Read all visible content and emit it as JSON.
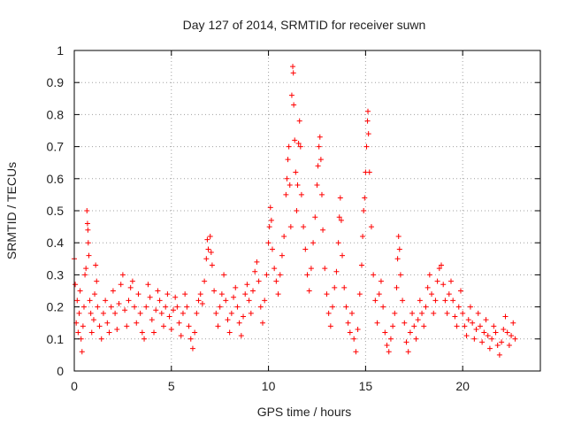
{
  "chart_data": {
    "type": "scatter",
    "title": "Day 127 of 2014, SRMTID for receiver suwn",
    "xlabel": "GPS time / hours",
    "ylabel": "SRMTID / TECUs",
    "xlim": [
      0,
      24
    ],
    "ylim": [
      0,
      1
    ],
    "x_ticks": [
      0,
      5,
      10,
      15,
      20
    ],
    "x_tick_labels": [
      "0",
      "5",
      "10",
      "15",
      "20"
    ],
    "y_ticks": [
      0,
      0.1,
      0.2,
      0.3,
      0.4,
      0.5,
      0.6,
      0.7,
      0.8,
      0.9,
      1
    ],
    "y_tick_labels": [
      "0",
      "0.1",
      "0.2",
      "0.3",
      "0.4",
      "0.5",
      "0.6",
      "0.7",
      "0.8",
      "0.9",
      "1"
    ],
    "grid": true,
    "marker": "+",
    "color": "#ff0000",
    "series": [
      {
        "name": "SRMTID",
        "points": [
          [
            0.0,
            0.35
          ],
          [
            0.05,
            0.27
          ],
          [
            0.1,
            0.15
          ],
          [
            0.15,
            0.22
          ],
          [
            0.2,
            0.12
          ],
          [
            0.25,
            0.18
          ],
          [
            0.3,
            0.25
          ],
          [
            0.35,
            0.1
          ],
          [
            0.4,
            0.06
          ],
          [
            0.45,
            0.14
          ],
          [
            0.5,
            0.2
          ],
          [
            0.55,
            0.3
          ],
          [
            0.6,
            0.32
          ],
          [
            0.65,
            0.5
          ],
          [
            0.68,
            0.46
          ],
          [
            0.7,
            0.44
          ],
          [
            0.72,
            0.4
          ],
          [
            0.75,
            0.36
          ],
          [
            0.8,
            0.22
          ],
          [
            0.85,
            0.18
          ],
          [
            0.9,
            0.12
          ],
          [
            1.0,
            0.16
          ],
          [
            1.05,
            0.24
          ],
          [
            1.1,
            0.33
          ],
          [
            1.15,
            0.28
          ],
          [
            1.2,
            0.2
          ],
          [
            1.3,
            0.14
          ],
          [
            1.4,
            0.1
          ],
          [
            1.5,
            0.18
          ],
          [
            1.6,
            0.22
          ],
          [
            1.7,
            0.15
          ],
          [
            1.8,
            0.12
          ],
          [
            1.9,
            0.2
          ],
          [
            2.0,
            0.25
          ],
          [
            2.1,
            0.18
          ],
          [
            2.2,
            0.13
          ],
          [
            2.3,
            0.21
          ],
          [
            2.4,
            0.27
          ],
          [
            2.5,
            0.3
          ],
          [
            2.6,
            0.19
          ],
          [
            2.7,
            0.14
          ],
          [
            2.8,
            0.22
          ],
          [
            2.9,
            0.26
          ],
          [
            3.0,
            0.28
          ],
          [
            3.1,
            0.2
          ],
          [
            3.2,
            0.15
          ],
          [
            3.3,
            0.24
          ],
          [
            3.4,
            0.18
          ],
          [
            3.5,
            0.12
          ],
          [
            3.6,
            0.1
          ],
          [
            3.7,
            0.2
          ],
          [
            3.8,
            0.27
          ],
          [
            3.9,
            0.23
          ],
          [
            4.0,
            0.16
          ],
          [
            4.1,
            0.12
          ],
          [
            4.2,
            0.19
          ],
          [
            4.3,
            0.25
          ],
          [
            4.4,
            0.22
          ],
          [
            4.5,
            0.18
          ],
          [
            4.6,
            0.14
          ],
          [
            4.7,
            0.2
          ],
          [
            4.8,
            0.24
          ],
          [
            4.9,
            0.17
          ],
          [
            5.0,
            0.13
          ],
          [
            5.1,
            0.19
          ],
          [
            5.2,
            0.23
          ],
          [
            5.3,
            0.2
          ],
          [
            5.4,
            0.15
          ],
          [
            5.5,
            0.11
          ],
          [
            5.6,
            0.18
          ],
          [
            5.7,
            0.24
          ],
          [
            5.8,
            0.2
          ],
          [
            5.9,
            0.14
          ],
          [
            6.0,
            0.1
          ],
          [
            6.1,
            0.07
          ],
          [
            6.2,
            0.12
          ],
          [
            6.3,
            0.18
          ],
          [
            6.4,
            0.22
          ],
          [
            6.5,
            0.24
          ],
          [
            6.6,
            0.21
          ],
          [
            6.7,
            0.28
          ],
          [
            6.8,
            0.35
          ],
          [
            6.85,
            0.41
          ],
          [
            6.9,
            0.38
          ],
          [
            7.0,
            0.42
          ],
          [
            7.05,
            0.37
          ],
          [
            7.1,
            0.33
          ],
          [
            7.2,
            0.25
          ],
          [
            7.3,
            0.18
          ],
          [
            7.4,
            0.14
          ],
          [
            7.5,
            0.2
          ],
          [
            7.6,
            0.24
          ],
          [
            7.7,
            0.3
          ],
          [
            7.8,
            0.22
          ],
          [
            7.9,
            0.16
          ],
          [
            8.0,
            0.12
          ],
          [
            8.1,
            0.18
          ],
          [
            8.2,
            0.23
          ],
          [
            8.3,
            0.26
          ],
          [
            8.4,
            0.2
          ],
          [
            8.5,
            0.15
          ],
          [
            8.6,
            0.11
          ],
          [
            8.7,
            0.17
          ],
          [
            8.8,
            0.24
          ],
          [
            8.9,
            0.27
          ],
          [
            9.0,
            0.22
          ],
          [
            9.1,
            0.18
          ],
          [
            9.2,
            0.25
          ],
          [
            9.3,
            0.31
          ],
          [
            9.4,
            0.34
          ],
          [
            9.5,
            0.28
          ],
          [
            9.6,
            0.2
          ],
          [
            9.7,
            0.15
          ],
          [
            9.8,
            0.22
          ],
          [
            9.9,
            0.3
          ],
          [
            10.0,
            0.4
          ],
          [
            10.05,
            0.45
          ],
          [
            10.1,
            0.51
          ],
          [
            10.15,
            0.47
          ],
          [
            10.2,
            0.38
          ],
          [
            10.3,
            0.32
          ],
          [
            10.4,
            0.28
          ],
          [
            10.5,
            0.24
          ],
          [
            10.6,
            0.3
          ],
          [
            10.7,
            0.36
          ],
          [
            10.8,
            0.42
          ],
          [
            10.9,
            0.55
          ],
          [
            10.95,
            0.6
          ],
          [
            11.0,
            0.66
          ],
          [
            11.05,
            0.7
          ],
          [
            11.1,
            0.58
          ],
          [
            11.15,
            0.45
          ],
          [
            11.2,
            0.86
          ],
          [
            11.25,
            0.95
          ],
          [
            11.28,
            0.93
          ],
          [
            11.3,
            0.83
          ],
          [
            11.35,
            0.72
          ],
          [
            11.4,
            0.62
          ],
          [
            11.45,
            0.5
          ],
          [
            11.5,
            0.58
          ],
          [
            11.55,
            0.71
          ],
          [
            11.6,
            0.78
          ],
          [
            11.65,
            0.7
          ],
          [
            11.7,
            0.55
          ],
          [
            11.8,
            0.45
          ],
          [
            11.9,
            0.38
          ],
          [
            12.0,
            0.3
          ],
          [
            12.1,
            0.25
          ],
          [
            12.2,
            0.32
          ],
          [
            12.3,
            0.4
          ],
          [
            12.4,
            0.48
          ],
          [
            12.5,
            0.58
          ],
          [
            12.55,
            0.64
          ],
          [
            12.6,
            0.7
          ],
          [
            12.65,
            0.73
          ],
          [
            12.7,
            0.66
          ],
          [
            12.75,
            0.55
          ],
          [
            12.8,
            0.44
          ],
          [
            12.9,
            0.32
          ],
          [
            13.0,
            0.24
          ],
          [
            13.1,
            0.18
          ],
          [
            13.2,
            0.14
          ],
          [
            13.3,
            0.2
          ],
          [
            13.4,
            0.26
          ],
          [
            13.5,
            0.31
          ],
          [
            13.6,
            0.4
          ],
          [
            13.65,
            0.48
          ],
          [
            13.7,
            0.54
          ],
          [
            13.75,
            0.47
          ],
          [
            13.8,
            0.36
          ],
          [
            13.9,
            0.26
          ],
          [
            14.0,
            0.2
          ],
          [
            14.1,
            0.15
          ],
          [
            14.2,
            0.12
          ],
          [
            14.3,
            0.18
          ],
          [
            14.4,
            0.1
          ],
          [
            14.5,
            0.06
          ],
          [
            14.6,
            0.13
          ],
          [
            14.7,
            0.24
          ],
          [
            14.8,
            0.33
          ],
          [
            14.85,
            0.42
          ],
          [
            14.9,
            0.5
          ],
          [
            14.95,
            0.54
          ],
          [
            15.0,
            0.62
          ],
          [
            15.05,
            0.7
          ],
          [
            15.1,
            0.78
          ],
          [
            15.12,
            0.81
          ],
          [
            15.15,
            0.74
          ],
          [
            15.2,
            0.62
          ],
          [
            15.3,
            0.45
          ],
          [
            15.4,
            0.3
          ],
          [
            15.5,
            0.22
          ],
          [
            15.6,
            0.15
          ],
          [
            15.7,
            0.24
          ],
          [
            15.8,
            0.28
          ],
          [
            15.9,
            0.2
          ],
          [
            16.0,
            0.12
          ],
          [
            16.1,
            0.08
          ],
          [
            16.2,
            0.06
          ],
          [
            16.3,
            0.1
          ],
          [
            16.4,
            0.14
          ],
          [
            16.5,
            0.18
          ],
          [
            16.6,
            0.26
          ],
          [
            16.65,
            0.35
          ],
          [
            16.7,
            0.42
          ],
          [
            16.75,
            0.38
          ],
          [
            16.8,
            0.3
          ],
          [
            16.9,
            0.22
          ],
          [
            17.0,
            0.15
          ],
          [
            17.1,
            0.09
          ],
          [
            17.2,
            0.06
          ],
          [
            17.3,
            0.12
          ],
          [
            17.4,
            0.18
          ],
          [
            17.5,
            0.14
          ],
          [
            17.6,
            0.1
          ],
          [
            17.7,
            0.16
          ],
          [
            17.8,
            0.22
          ],
          [
            17.9,
            0.18
          ],
          [
            18.0,
            0.14
          ],
          [
            18.1,
            0.2
          ],
          [
            18.2,
            0.26
          ],
          [
            18.3,
            0.3
          ],
          [
            18.4,
            0.24
          ],
          [
            18.5,
            0.18
          ],
          [
            18.6,
            0.22
          ],
          [
            18.7,
            0.28
          ],
          [
            18.8,
            0.32
          ],
          [
            18.9,
            0.33
          ],
          [
            19.0,
            0.27
          ],
          [
            19.1,
            0.22
          ],
          [
            19.2,
            0.18
          ],
          [
            19.3,
            0.24
          ],
          [
            19.4,
            0.28
          ],
          [
            19.5,
            0.22
          ],
          [
            19.6,
            0.17
          ],
          [
            19.7,
            0.14
          ],
          [
            19.8,
            0.2
          ],
          [
            19.9,
            0.25
          ],
          [
            20.0,
            0.18
          ],
          [
            20.1,
            0.14
          ],
          [
            20.2,
            0.11
          ],
          [
            20.3,
            0.16
          ],
          [
            20.4,
            0.2
          ],
          [
            20.5,
            0.15
          ],
          [
            20.6,
            0.1
          ],
          [
            20.7,
            0.13
          ],
          [
            20.8,
            0.18
          ],
          [
            20.9,
            0.14
          ],
          [
            21.0,
            0.09
          ],
          [
            21.1,
            0.12
          ],
          [
            21.2,
            0.16
          ],
          [
            21.3,
            0.11
          ],
          [
            21.4,
            0.07
          ],
          [
            21.5,
            0.1
          ],
          [
            21.6,
            0.14
          ],
          [
            21.7,
            0.12
          ],
          [
            21.8,
            0.08
          ],
          [
            21.9,
            0.05
          ],
          [
            22.0,
            0.09
          ],
          [
            22.1,
            0.13
          ],
          [
            22.2,
            0.17
          ],
          [
            22.3,
            0.12
          ],
          [
            22.4,
            0.08
          ],
          [
            22.5,
            0.11
          ],
          [
            22.6,
            0.15
          ],
          [
            22.7,
            0.1
          ]
        ]
      }
    ]
  }
}
